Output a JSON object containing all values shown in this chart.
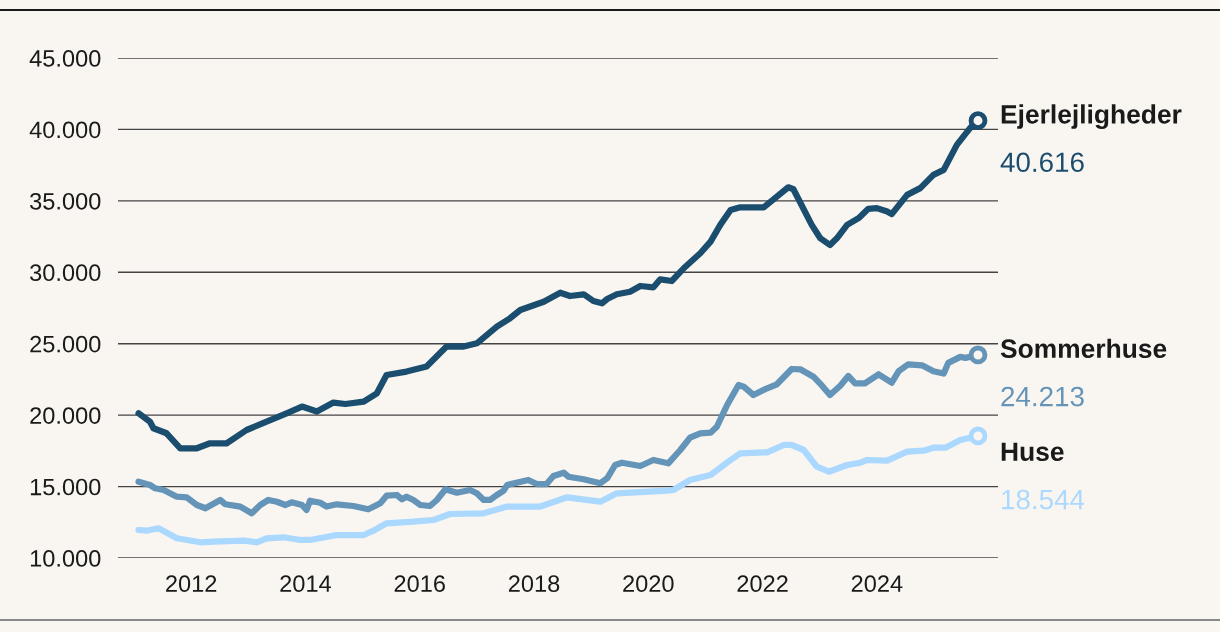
{
  "chart_data": {
    "type": "line",
    "xlim": [
      2010.72,
      2026.12
    ],
    "xticks": [
      2012,
      2014,
      2016,
      2018,
      2020,
      2022,
      2024
    ],
    "ylim": [
      10000,
      45000
    ],
    "yticks": [
      {
        "value": 10000,
        "label": "10.000"
      },
      {
        "value": 15000,
        "label": "15.000"
      },
      {
        "value": 20000,
        "label": "20.000"
      },
      {
        "value": 25000,
        "label": "25.000"
      },
      {
        "value": 30000,
        "label": "30.000"
      },
      {
        "value": 35000,
        "label": "35.000"
      },
      {
        "value": 40000,
        "label": "40.000"
      },
      {
        "value": 45000,
        "label": "45.000"
      }
    ],
    "grid": "y",
    "legend": false,
    "line_style": "solid",
    "series": [
      {
        "name": "Ejerlejligheder",
        "color": "#1b4d6e",
        "x": [
          2011.08,
          2011.28,
          2011.34,
          2011.57,
          2011.81,
          2012.1,
          2012.33,
          2012.62,
          2012.97,
          2013.32,
          2013.67,
          2013.94,
          2014.2,
          2014.49,
          2014.7,
          2015.02,
          2015.25,
          2015.42,
          2015.77,
          2016.12,
          2016.47,
          2016.77,
          2017.0,
          2017.35,
          2017.58,
          2017.76,
          2018.17,
          2018.46,
          2018.63,
          2018.87,
          2019.04,
          2019.19,
          2019.28,
          2019.45,
          2019.68,
          2019.86,
          2020.09,
          2020.21,
          2020.41,
          2020.62,
          2020.91,
          2021.09,
          2021.26,
          2021.44,
          2021.61,
          2022.02,
          2022.25,
          2022.45,
          2022.54,
          2022.86,
          2023.01,
          2023.18,
          2023.3,
          2023.48,
          2023.68,
          2023.85,
          2024.0,
          2024.18,
          2024.26,
          2024.53,
          2024.76,
          2024.99,
          2025.17,
          2025.4,
          2025.63,
          2025.77
        ],
        "values": [
          20130,
          19540,
          19080,
          18730,
          17680,
          17680,
          18030,
          18030,
          18960,
          19540,
          20130,
          20600,
          20250,
          20880,
          20780,
          20940,
          21530,
          22810,
          23050,
          23400,
          24800,
          24800,
          25030,
          26200,
          26780,
          27360,
          27940,
          28570,
          28340,
          28460,
          27990,
          27830,
          28130,
          28460,
          28640,
          29040,
          28950,
          29510,
          29390,
          30280,
          31330,
          32150,
          33320,
          34360,
          34550,
          34550,
          35300,
          35950,
          35810,
          33320,
          32380,
          31910,
          32380,
          33320,
          33790,
          34440,
          34490,
          34250,
          34070,
          35420,
          35890,
          36820,
          37170,
          38920,
          40090,
          40616
        ],
        "value_labels": [
          null,
          null,
          null,
          null,
          null,
          null,
          null,
          null,
          null,
          null,
          null,
          null,
          null,
          null,
          null,
          null,
          null,
          null,
          null,
          null,
          null,
          null,
          null,
          null,
          null,
          null,
          null,
          null,
          null,
          null,
          null,
          null,
          null,
          null,
          null,
          null,
          null,
          null,
          null,
          null,
          null,
          null,
          null,
          null,
          null,
          null,
          null,
          null,
          null,
          null,
          null,
          null,
          null,
          null,
          null,
          null,
          null,
          null,
          null,
          null,
          null,
          null,
          null,
          null,
          null,
          "40.616"
        ]
      },
      {
        "name": "Sommerhuse",
        "color": "#6494b7",
        "x": [
          2011.08,
          2011.28,
          2011.37,
          2011.52,
          2011.75,
          2011.92,
          2012.1,
          2012.25,
          2012.51,
          2012.6,
          2012.86,
          2013.06,
          2013.21,
          2013.35,
          2013.5,
          2013.65,
          2013.76,
          2013.94,
          2014.02,
          2014.08,
          2014.26,
          2014.37,
          2014.55,
          2014.84,
          2015.1,
          2015.31,
          2015.42,
          2015.6,
          2015.69,
          2015.77,
          2015.89,
          2016.01,
          2016.18,
          2016.3,
          2016.45,
          2016.65,
          2016.88,
          2017.0,
          2017.12,
          2017.23,
          2017.35,
          2017.47,
          2017.53,
          2017.9,
          2018.05,
          2018.22,
          2018.34,
          2018.52,
          2018.6,
          2018.87,
          2019.16,
          2019.28,
          2019.42,
          2019.54,
          2019.86,
          2020.09,
          2020.35,
          2020.56,
          2020.73,
          2020.91,
          2021.09,
          2021.2,
          2021.38,
          2021.58,
          2021.67,
          2021.84,
          2022.08,
          2022.25,
          2022.51,
          2022.66,
          2022.89,
          2023.04,
          2023.18,
          2023.36,
          2023.5,
          2023.62,
          2023.79,
          2024.03,
          2024.26,
          2024.38,
          2024.55,
          2024.79,
          2024.99,
          2025.17,
          2025.25,
          2025.46,
          2025.55,
          2025.77
        ],
        "values": [
          15340,
          15110,
          14880,
          14760,
          14290,
          14250,
          13710,
          13480,
          14060,
          13760,
          13600,
          13130,
          13710,
          14060,
          13940,
          13710,
          13900,
          13710,
          13360,
          14010,
          13870,
          13600,
          13760,
          13640,
          13410,
          13830,
          14360,
          14410,
          14110,
          14290,
          14060,
          13710,
          13640,
          14060,
          14810,
          14570,
          14760,
          14530,
          14060,
          14060,
          14410,
          14710,
          15110,
          15460,
          15180,
          15180,
          15740,
          15970,
          15690,
          15510,
          15230,
          15580,
          16510,
          16670,
          16440,
          16860,
          16630,
          17560,
          18420,
          18730,
          18770,
          19190,
          20710,
          22110,
          21990,
          21410,
          21880,
          22160,
          23230,
          23210,
          22690,
          22060,
          21410,
          22060,
          22740,
          22230,
          22230,
          22860,
          22270,
          23070,
          23560,
          23490,
          23070,
          22910,
          23660,
          24080,
          24010,
          24213
        ],
        "value_labels": [
          null,
          null,
          null,
          null,
          null,
          null,
          null,
          null,
          null,
          null,
          null,
          null,
          null,
          null,
          null,
          null,
          null,
          null,
          null,
          null,
          null,
          null,
          null,
          null,
          null,
          null,
          null,
          null,
          null,
          null,
          null,
          null,
          null,
          null,
          null,
          null,
          null,
          null,
          null,
          null,
          null,
          null,
          null,
          null,
          null,
          null,
          null,
          null,
          null,
          null,
          null,
          null,
          null,
          null,
          null,
          null,
          null,
          null,
          null,
          null,
          null,
          null,
          null,
          null,
          null,
          null,
          null,
          null,
          null,
          null,
          null,
          null,
          null,
          null,
          null,
          null,
          null,
          null,
          null,
          null,
          null,
          null,
          null,
          null,
          null,
          null,
          null,
          "24.213"
        ]
      },
      {
        "name": "Huse",
        "color": "#aad8fe",
        "x": [
          2011.08,
          2011.22,
          2011.43,
          2011.75,
          2012.16,
          2012.39,
          2012.92,
          2013.15,
          2013.32,
          2013.62,
          2013.91,
          2014.08,
          2014.55,
          2015.02,
          2015.19,
          2015.42,
          2015.89,
          2016.24,
          2016.53,
          2017.12,
          2017.53,
          2018.11,
          2018.58,
          2019.16,
          2019.45,
          2020.33,
          2020.44,
          2020.73,
          2021.09,
          2021.44,
          2021.61,
          2022.08,
          2022.37,
          2022.51,
          2022.72,
          2022.95,
          2023.16,
          2023.48,
          2023.71,
          2023.83,
          2024.18,
          2024.53,
          2024.82,
          2024.99,
          2025.2,
          2025.46,
          2025.77
        ],
        "values": [
          11960,
          11910,
          12080,
          11380,
          11100,
          11140,
          11210,
          11100,
          11380,
          11450,
          11260,
          11260,
          11610,
          11610,
          11910,
          12430,
          12540,
          12660,
          13080,
          13130,
          13600,
          13600,
          14250,
          13940,
          14530,
          14710,
          14760,
          15460,
          15810,
          16860,
          17330,
          17400,
          17910,
          17910,
          17560,
          16390,
          16040,
          16510,
          16670,
          16860,
          16810,
          17440,
          17510,
          17720,
          17720,
          18260,
          18544
        ],
        "value_labels": [
          null,
          null,
          null,
          null,
          null,
          null,
          null,
          null,
          null,
          null,
          null,
          null,
          null,
          null,
          null,
          null,
          null,
          null,
          null,
          null,
          null,
          null,
          null,
          null,
          null,
          null,
          null,
          null,
          null,
          null,
          null,
          null,
          null,
          null,
          null,
          null,
          null,
          null,
          null,
          null,
          null,
          null,
          null,
          null,
          null,
          null,
          "18.544"
        ]
      }
    ]
  }
}
